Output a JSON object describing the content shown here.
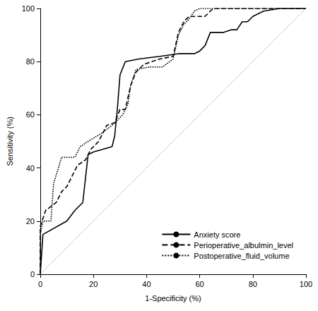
{
  "chart_data": {
    "type": "line",
    "x_label": "1-Specificity (%)",
    "y_label": "Sensitivity (%)",
    "xlim": [
      0,
      100
    ],
    "xticks": [
      0,
      20,
      40,
      60,
      80,
      100
    ],
    "ylim": [
      0,
      100
    ],
    "yticks": [
      0,
      20,
      40,
      60,
      80,
      100
    ],
    "grid": false,
    "legend": "lower right",
    "series": [
      {
        "name": "Anxiety score",
        "color": "#000000",
        "line_style": "solid",
        "x": [
          0,
          1,
          10,
          13,
          16,
          18,
          20,
          27,
          28,
          29,
          30,
          32,
          37,
          45,
          52,
          58,
          60,
          62,
          64,
          69,
          72,
          74,
          76,
          78,
          80,
          84,
          90,
          100
        ],
        "values": [
          0,
          15,
          20,
          24,
          27,
          45,
          46,
          48,
          52,
          62,
          75,
          80,
          81,
          82,
          83,
          83,
          84,
          86,
          91,
          91,
          92,
          92,
          95,
          95,
          97,
          99,
          100,
          100
        ]
      },
      {
        "name": "Perioperative_albulmin_level",
        "color": "#000000",
        "line_style": "dashed",
        "x": [
          0,
          0,
          2,
          6,
          8,
          10,
          12,
          14,
          17,
          19,
          22,
          25,
          28,
          30,
          32,
          34,
          36,
          39,
          45,
          50,
          52,
          54,
          56,
          62,
          65,
          100
        ],
        "values": [
          0,
          18,
          24,
          27,
          31,
          33,
          37,
          41,
          43,
          47,
          50,
          56,
          57,
          62,
          62,
          71,
          76,
          79,
          81,
          82,
          91,
          95,
          97,
          97,
          100,
          100
        ]
      },
      {
        "name": "Postoperative_fluid_volume",
        "color": "#000000",
        "line_style": "dotted",
        "x": [
          0,
          0,
          1,
          4,
          5,
          8,
          13,
          15,
          18,
          23,
          27,
          31,
          33,
          34,
          36,
          41,
          46,
          50,
          52,
          54,
          56,
          58,
          60,
          100
        ],
        "values": [
          0,
          15,
          20,
          20,
          34,
          44,
          44,
          48,
          50,
          53,
          56,
          60,
          64,
          71,
          77,
          78,
          78,
          81,
          90,
          94,
          96,
          99,
          100,
          100
        ]
      },
      {
        "color": "#999999",
        "line_style": "dotted",
        "x": [
          0,
          100
        ],
        "values": [
          0,
          100
        ]
      }
    ]
  }
}
